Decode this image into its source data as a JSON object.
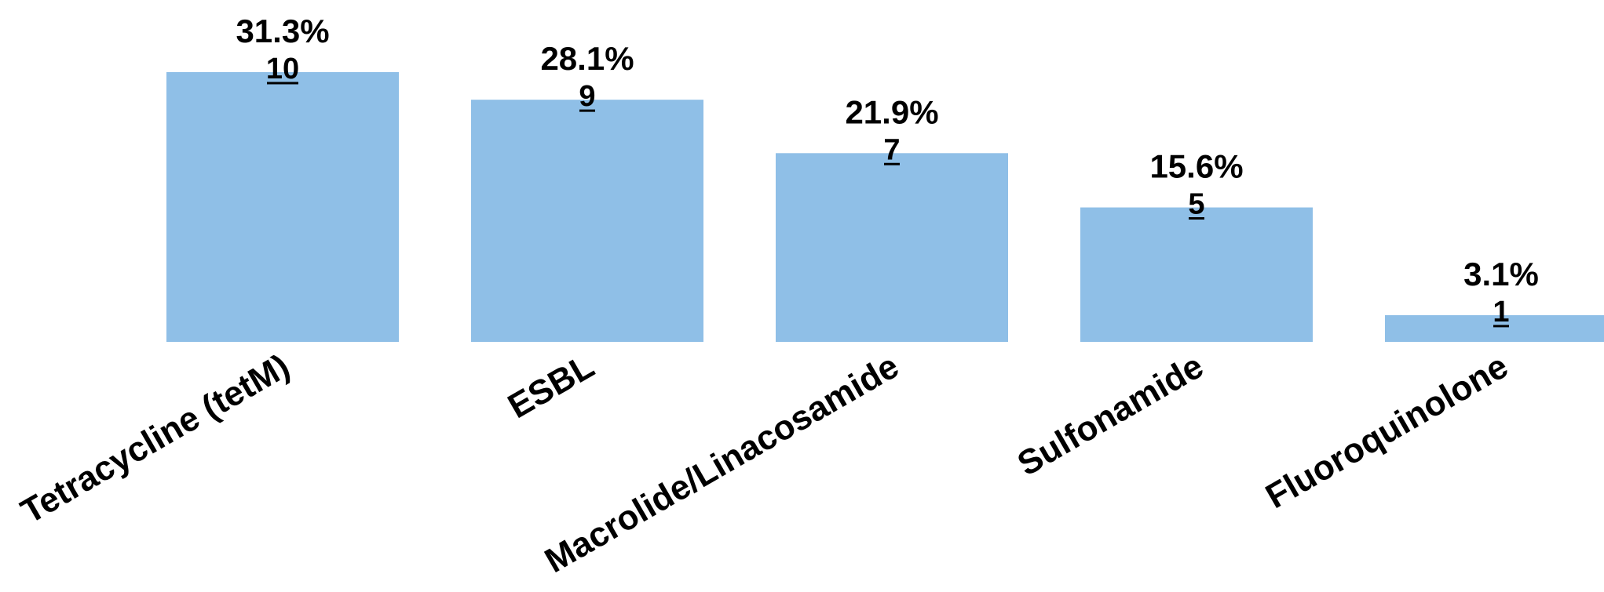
{
  "chart_data": {
    "type": "bar",
    "categories": [
      "Tetracycline (tetM)",
      "ESBL",
      "Macrolide/Linacosamide",
      "Sulfonamide",
      "Fluoroquinolone"
    ],
    "values": [
      31.3,
      28.1,
      21.9,
      15.6,
      3.1
    ],
    "counts": [
      10,
      9,
      7,
      5,
      1
    ],
    "percent_labels": [
      "31.3%",
      "28.1%",
      "21.9%",
      "15.6%",
      "3.1%"
    ],
    "count_labels": [
      "10",
      "9",
      "7",
      "5",
      "1"
    ],
    "ylim": [
      0,
      31.3
    ],
    "title": "",
    "xlabel": "",
    "ylabel": "",
    "grid": false,
    "legend": "none",
    "bar_color": "#8fbfe7",
    "text_color": "#000000"
  }
}
